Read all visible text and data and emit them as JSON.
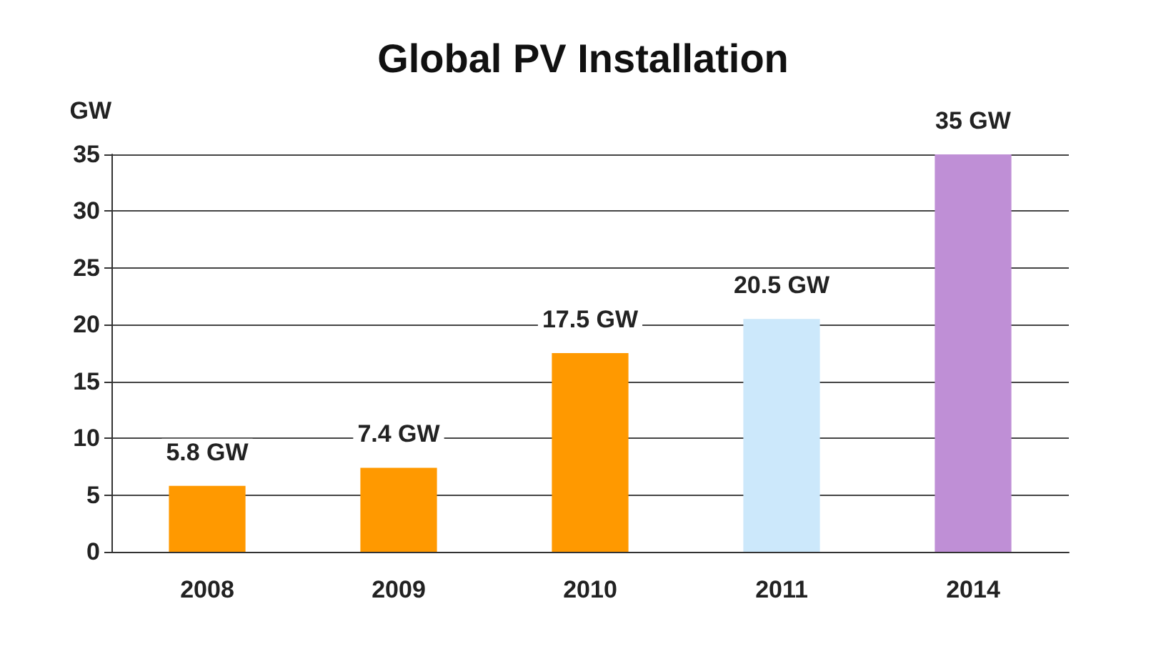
{
  "chart_data": {
    "type": "bar",
    "title": "Global PV Installation",
    "ylabel": "GW",
    "categories": [
      "2008",
      "2009",
      "2010",
      "2011",
      "2014"
    ],
    "values": [
      5.8,
      7.4,
      17.5,
      20.5,
      35
    ],
    "colors": [
      "#ff9900",
      "#ff9900",
      "#ff9900",
      "#cce8fb",
      "#bf8fd6"
    ],
    "value_labels": [
      "5.8 GW",
      "7.4 GW",
      "17.5 GW",
      "20.5 GW",
      "35 GW"
    ],
    "ylim": [
      0,
      35
    ],
    "yticks": [
      0,
      5,
      10,
      15,
      20,
      25,
      30,
      35
    ],
    "grid": "y"
  }
}
